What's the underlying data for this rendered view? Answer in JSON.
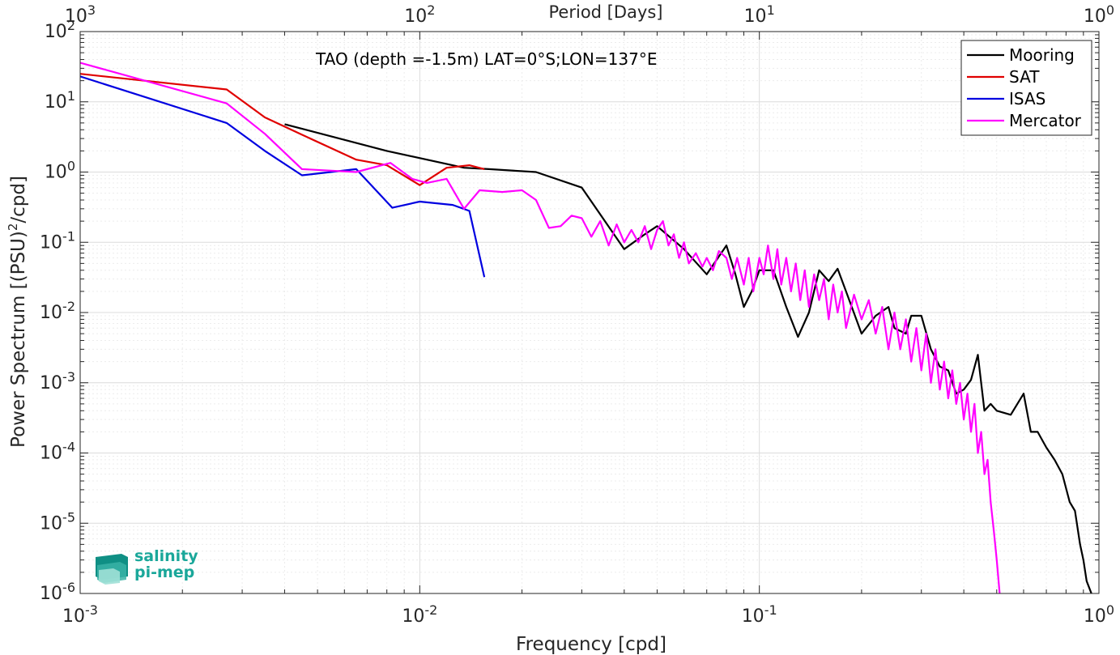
{
  "chart_data": {
    "type": "line",
    "title": "",
    "annotation": "TAO (depth =-1.5m) LAT=0°S;LON=137°E",
    "xlabel": "Frequency [cpd]",
    "ylabel_main": "Power Spectrum [(PSU)",
    "ylabel_sup": "2",
    "ylabel_tail": "/cpd]",
    "top_xlabel": "Period [Days]",
    "xscale": "log",
    "yscale": "log",
    "xlim": [
      0.001,
      1
    ],
    "ylim": [
      1e-06,
      100
    ],
    "grid": true,
    "legend_position": "top-right",
    "xticks": [
      {
        "value": 0.001,
        "base": "10",
        "exp": "-3"
      },
      {
        "value": 0.01,
        "base": "10",
        "exp": "-2"
      },
      {
        "value": 0.1,
        "base": "10",
        "exp": "-1"
      },
      {
        "value": 1,
        "base": "10",
        "exp": "0"
      }
    ],
    "top_xticks": [
      {
        "value": 0.001,
        "base": "10",
        "exp": "3"
      },
      {
        "value": 0.01,
        "base": "10",
        "exp": "2"
      },
      {
        "value": 0.1,
        "base": "10",
        "exp": "1"
      },
      {
        "value": 1,
        "base": "10",
        "exp": "0"
      }
    ],
    "yticks": [
      {
        "value": 1e-06,
        "base": "10",
        "exp": "-6"
      },
      {
        "value": 1e-05,
        "base": "10",
        "exp": "-5"
      },
      {
        "value": 0.0001,
        "base": "10",
        "exp": "-4"
      },
      {
        "value": 0.001,
        "base": "10",
        "exp": "-3"
      },
      {
        "value": 0.01,
        "base": "10",
        "exp": "-2"
      },
      {
        "value": 0.1,
        "base": "10",
        "exp": "-1"
      },
      {
        "value": 1,
        "base": "10",
        "exp": "0"
      },
      {
        "value": 10,
        "base": "10",
        "exp": "1"
      },
      {
        "value": 100,
        "base": "10",
        "exp": "2"
      }
    ],
    "series": [
      {
        "name": "Mooring",
        "color": "#000000",
        "points": [
          [
            0.004,
            4.8
          ],
          [
            0.008,
            2.0
          ],
          [
            0.0135,
            1.15
          ],
          [
            0.016,
            1.1
          ],
          [
            0.022,
            1.0
          ],
          [
            0.03,
            0.6
          ],
          [
            0.04,
            0.08
          ],
          [
            0.046,
            0.13
          ],
          [
            0.05,
            0.17
          ],
          [
            0.06,
            0.08
          ],
          [
            0.07,
            0.035
          ],
          [
            0.08,
            0.09
          ],
          [
            0.085,
            0.035
          ],
          [
            0.09,
            0.012
          ],
          [
            0.095,
            0.02
          ],
          [
            0.1,
            0.04
          ],
          [
            0.11,
            0.04
          ],
          [
            0.12,
            0.012
          ],
          [
            0.13,
            0.0045
          ],
          [
            0.14,
            0.01
          ],
          [
            0.15,
            0.04
          ],
          [
            0.16,
            0.028
          ],
          [
            0.17,
            0.042
          ],
          [
            0.18,
            0.02
          ],
          [
            0.2,
            0.005
          ],
          [
            0.22,
            0.009
          ],
          [
            0.24,
            0.012
          ],
          [
            0.25,
            0.006
          ],
          [
            0.27,
            0.005
          ],
          [
            0.28,
            0.009
          ],
          [
            0.3,
            0.009
          ],
          [
            0.32,
            0.003
          ],
          [
            0.34,
            0.0017
          ],
          [
            0.36,
            0.0015
          ],
          [
            0.38,
            0.0007
          ],
          [
            0.4,
            0.0008
          ],
          [
            0.42,
            0.0011
          ],
          [
            0.44,
            0.0025
          ],
          [
            0.46,
            0.0004
          ],
          [
            0.48,
            0.0005
          ],
          [
            0.5,
            0.0004
          ],
          [
            0.55,
            0.00035
          ],
          [
            0.6,
            0.0007
          ],
          [
            0.63,
            0.0002
          ],
          [
            0.66,
            0.0002
          ],
          [
            0.7,
            0.00012
          ],
          [
            0.74,
            8e-05
          ],
          [
            0.78,
            5e-05
          ],
          [
            0.82,
            2e-05
          ],
          [
            0.85,
            1.5e-05
          ],
          [
            0.88,
            5e-06
          ],
          [
            0.9,
            3e-06
          ],
          [
            0.92,
            1.5e-06
          ],
          [
            0.95,
            1e-06
          ]
        ]
      },
      {
        "name": "SAT",
        "color": "#e00000",
        "points": [
          [
            0.001,
            25
          ],
          [
            0.0027,
            15
          ],
          [
            0.0035,
            6
          ],
          [
            0.0045,
            3.4
          ],
          [
            0.0065,
            1.5
          ],
          [
            0.008,
            1.25
          ],
          [
            0.01,
            0.65
          ],
          [
            0.012,
            1.15
          ],
          [
            0.014,
            1.25
          ],
          [
            0.0155,
            1.1
          ]
        ]
      },
      {
        "name": "ISAS",
        "color": "#0000e0",
        "points": [
          [
            0.001,
            23
          ],
          [
            0.0027,
            5
          ],
          [
            0.0035,
            2
          ],
          [
            0.0045,
            0.9
          ],
          [
            0.0065,
            1.1
          ],
          [
            0.0083,
            0.31
          ],
          [
            0.01,
            0.38
          ],
          [
            0.0125,
            0.34
          ],
          [
            0.014,
            0.28
          ],
          [
            0.0155,
            0.032
          ]
        ]
      },
      {
        "name": "Mercator",
        "color": "#ff00ff",
        "points": [
          [
            0.001,
            36
          ],
          [
            0.0027,
            9.5
          ],
          [
            0.0035,
            3.5
          ],
          [
            0.0045,
            1.1
          ],
          [
            0.0065,
            1.0
          ],
          [
            0.0082,
            1.35
          ],
          [
            0.0095,
            0.8
          ],
          [
            0.0105,
            0.7
          ],
          [
            0.012,
            0.8
          ],
          [
            0.0135,
            0.3
          ],
          [
            0.015,
            0.55
          ],
          [
            0.0175,
            0.52
          ],
          [
            0.02,
            0.55
          ],
          [
            0.022,
            0.4
          ],
          [
            0.024,
            0.16
          ],
          [
            0.026,
            0.17
          ],
          [
            0.028,
            0.24
          ],
          [
            0.03,
            0.22
          ],
          [
            0.032,
            0.12
          ],
          [
            0.034,
            0.2
          ],
          [
            0.036,
            0.09
          ],
          [
            0.038,
            0.18
          ],
          [
            0.04,
            0.1
          ],
          [
            0.042,
            0.15
          ],
          [
            0.044,
            0.1
          ],
          [
            0.046,
            0.17
          ],
          [
            0.048,
            0.08
          ],
          [
            0.05,
            0.15
          ],
          [
            0.052,
            0.2
          ],
          [
            0.054,
            0.09
          ],
          [
            0.056,
            0.13
          ],
          [
            0.058,
            0.06
          ],
          [
            0.06,
            0.1
          ],
          [
            0.062,
            0.05
          ],
          [
            0.065,
            0.07
          ],
          [
            0.068,
            0.045
          ],
          [
            0.07,
            0.06
          ],
          [
            0.073,
            0.04
          ],
          [
            0.076,
            0.075
          ],
          [
            0.08,
            0.06
          ],
          [
            0.083,
            0.03
          ],
          [
            0.086,
            0.06
          ],
          [
            0.09,
            0.025
          ],
          [
            0.093,
            0.06
          ],
          [
            0.096,
            0.02
          ],
          [
            0.1,
            0.06
          ],
          [
            0.103,
            0.035
          ],
          [
            0.106,
            0.09
          ],
          [
            0.11,
            0.03
          ],
          [
            0.113,
            0.08
          ],
          [
            0.116,
            0.025
          ],
          [
            0.12,
            0.06
          ],
          [
            0.124,
            0.02
          ],
          [
            0.128,
            0.05
          ],
          [
            0.132,
            0.015
          ],
          [
            0.136,
            0.04
          ],
          [
            0.14,
            0.012
          ],
          [
            0.145,
            0.035
          ],
          [
            0.15,
            0.015
          ],
          [
            0.155,
            0.03
          ],
          [
            0.16,
            0.008
          ],
          [
            0.165,
            0.025
          ],
          [
            0.17,
            0.01
          ],
          [
            0.175,
            0.02
          ],
          [
            0.18,
            0.006
          ],
          [
            0.19,
            0.018
          ],
          [
            0.2,
            0.008
          ],
          [
            0.21,
            0.015
          ],
          [
            0.22,
            0.005
          ],
          [
            0.23,
            0.012
          ],
          [
            0.24,
            0.003
          ],
          [
            0.25,
            0.01
          ],
          [
            0.26,
            0.003
          ],
          [
            0.27,
            0.008
          ],
          [
            0.28,
            0.002
          ],
          [
            0.29,
            0.006
          ],
          [
            0.3,
            0.0015
          ],
          [
            0.31,
            0.005
          ],
          [
            0.32,
            0.001
          ],
          [
            0.33,
            0.003
          ],
          [
            0.34,
            0.0008
          ],
          [
            0.35,
            0.002
          ],
          [
            0.36,
            0.0006
          ],
          [
            0.37,
            0.0015
          ],
          [
            0.38,
            0.0005
          ],
          [
            0.39,
            0.001
          ],
          [
            0.4,
            0.0003
          ],
          [
            0.41,
            0.0007
          ],
          [
            0.42,
            0.0002
          ],
          [
            0.43,
            0.0005
          ],
          [
            0.44,
            0.0001
          ],
          [
            0.45,
            0.0002
          ],
          [
            0.46,
            5e-05
          ],
          [
            0.47,
            8e-05
          ],
          [
            0.48,
            2e-05
          ],
          [
            0.49,
            8e-06
          ],
          [
            0.5,
            3e-06
          ],
          [
            0.51,
            1e-06
          ]
        ]
      }
    ]
  },
  "logo": {
    "line1": "salinity",
    "line2": "pi-mep"
  }
}
